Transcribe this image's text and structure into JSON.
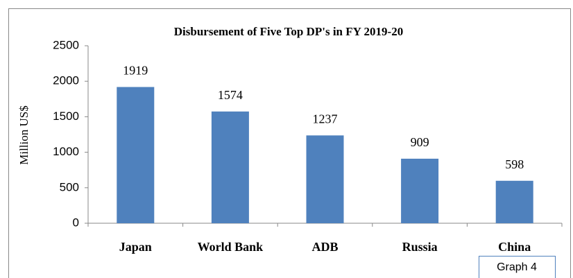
{
  "chart_data": {
    "type": "bar",
    "title": "Disbursement of Five Top DP's in FY 2019-20",
    "y_label": "Million US$",
    "categories": [
      "Japan",
      "World Bank",
      "ADB",
      "Russia",
      "China"
    ],
    "values": [
      1919,
      1574,
      1237,
      909,
      598
    ],
    "color": "#4f81bd",
    "ylim": [
      0,
      2500
    ],
    "yticks": [
      0,
      500,
      1000,
      1500,
      2000,
      2500
    ],
    "grid": false,
    "annotation": "Graph 4"
  }
}
